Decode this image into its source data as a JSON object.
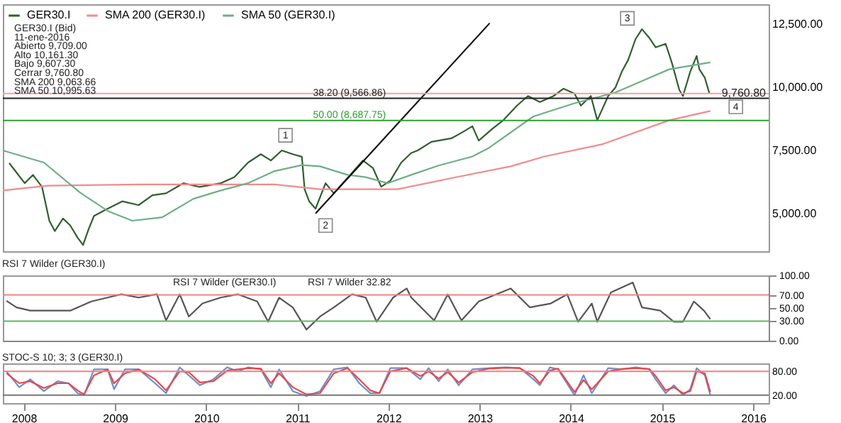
{
  "chart_data": [
    {
      "type": "line",
      "legend": "top left",
      "grid": false,
      "tick_labels": "y",
      "xlim": [
        2008.27,
        2016.67
      ],
      "ylim": [
        3500,
        13300
      ],
      "yticks": [
        {
          "value": 5000,
          "label": "5,000.00"
        },
        {
          "value": 7500,
          "label": "7,500.00"
        },
        {
          "value": 10000,
          "label": "10,000.00"
        },
        {
          "value": 12500,
          "label": "12,500.00"
        }
      ],
      "series": [
        {
          "name": "GER30.I",
          "color": "#2f5f2f",
          "x": [
            2008.34,
            2008.51,
            2008.6,
            2008.7,
            2008.78,
            2008.84,
            2008.93,
            2009.01,
            2009.09,
            2009.15,
            2009.21,
            2009.27,
            2009.42,
            2009.58,
            2009.76,
            2009.91,
            2010.06,
            2010.25,
            2010.43,
            2010.66,
            2010.81,
            2010.96,
            2011.1,
            2011.21,
            2011.33,
            2011.45,
            2011.55,
            2011.58,
            2011.63,
            2011.7,
            2011.81,
            2011.9,
            2012.08,
            2012.22,
            2012.33,
            2012.42,
            2012.52,
            2012.64,
            2012.75,
            2012.82,
            2012.97,
            2013.19,
            2013.31,
            2013.42,
            2013.49,
            2013.64,
            2013.76,
            2013.91,
            2014.03,
            2014.16,
            2014.31,
            2014.42,
            2014.54,
            2014.61,
            2014.72,
            2014.79,
            2014.91,
            2014.99,
            2015.06,
            2015.13,
            2015.21,
            2015.28,
            2015.36,
            2015.43,
            2015.54,
            2015.61,
            2015.69,
            2015.73,
            2015.81,
            2015.88,
            2015.91,
            2015.97,
            2016.02
          ],
          "values": [
            7000,
            6200,
            6530,
            6050,
            4710,
            4300,
            4800,
            4520,
            4040,
            3750,
            4370,
            4900,
            5190,
            5480,
            5330,
            5720,
            5800,
            6200,
            6050,
            6200,
            6440,
            7020,
            7350,
            7100,
            7500,
            7350,
            7250,
            5960,
            5480,
            5190,
            6200,
            5800,
            6530,
            7100,
            6800,
            6060,
            6300,
            7020,
            7400,
            7500,
            7840,
            7980,
            8220,
            8460,
            7890,
            8360,
            8700,
            9280,
            9660,
            9420,
            9660,
            9950,
            9760,
            9280,
            9660,
            8700,
            9660,
            10000,
            10630,
            11100,
            11920,
            12310,
            11970,
            11590,
            11730,
            10960,
            9900,
            9660,
            10630,
            11250,
            10720,
            10380,
            9760.8
          ]
        },
        {
          "name": "SMA 200 (GER30.I)",
          "color": "#f28b8b",
          "x": [
            2008.27,
            2008.76,
            2009.76,
            2011.25,
            2011.75,
            2012.6,
            2013.19,
            2013.84,
            2014.21,
            2014.84,
            2015.58,
            2016.03
          ],
          "values": [
            5910,
            6100,
            6150,
            6150,
            5960,
            5960,
            6400,
            6870,
            7260,
            7740,
            8700,
            9064
          ]
        },
        {
          "name": "SMA 50 (GER30.I)",
          "color": "#6fae86",
          "x": [
            2008.27,
            2008.72,
            2009.12,
            2009.42,
            2009.69,
            2010.02,
            2010.36,
            2010.66,
            2010.96,
            2011.25,
            2011.55,
            2011.75,
            2012.05,
            2012.25,
            2012.49,
            2012.75,
            2013.05,
            2013.42,
            2013.6,
            2014.09,
            2014.54,
            2014.99,
            2015.36,
            2015.58,
            2016.03
          ],
          "values": [
            7500,
            7020,
            5820,
            5100,
            4710,
            4850,
            5580,
            5910,
            6200,
            6680,
            6920,
            6870,
            6530,
            6440,
            6200,
            6530,
            6900,
            7260,
            7600,
            8850,
            9370,
            9800,
            10380,
            10720,
            10996
          ]
        },
        {
          "color": "#111111",
          "x": [
            2011.7,
            2013.61
          ],
          "values": [
            5000,
            12550
          ]
        }
      ],
      "ref_lines": [
        {
          "axis": "y",
          "value": 9760.8,
          "label": "9,760.80",
          "color": "#f4a0a0"
        },
        {
          "axis": "y",
          "value": 9566.86,
          "label": "38.20 (9,566.86)",
          "color": "#222222"
        },
        {
          "axis": "y",
          "value": 8687.75,
          "label": "50.00 (8,687.75)",
          "color": "#2e9e2e"
        }
      ],
      "annotations": [
        "GER30.I (Bid)",
        "11-ene-2016",
        "Abierto 9,709.00",
        "Alto 10,161.30",
        "Bajo 9,607.30",
        "Cerrar 9,760.80",
        "SMA 200 9,063.66",
        "SMA 50 10,995.63",
        {
          "text": "1",
          "x": 2011.37,
          "y": 8100
        },
        {
          "text": "2",
          "x": 2011.81,
          "y": 4520
        },
        {
          "text": "3",
          "x": 2015.12,
          "y": 12740
        },
        {
          "text": "4",
          "x": 2016.31,
          "y": 9230
        }
      ]
    },
    {
      "type": "line",
      "title": "RSI 7 Wilder (GER30.I)",
      "grid": false,
      "tick_labels": "y",
      "xlim": [
        2008.27,
        2016.67
      ],
      "ylim": [
        0,
        100
      ],
      "yticks": [
        {
          "value": 0,
          "label": "0.00"
        },
        {
          "value": 30,
          "label": "30.00"
        },
        {
          "value": 50,
          "label": "50.00"
        },
        {
          "value": 70,
          "label": "70.00"
        },
        {
          "value": 100,
          "label": "100.00"
        }
      ],
      "x": [
        2008.31,
        2008.42,
        2008.57,
        2009.01,
        2009.24,
        2009.42,
        2009.57,
        2009.76,
        2009.96,
        2010.06,
        2010.21,
        2010.31,
        2010.46,
        2010.66,
        2010.85,
        2011.06,
        2011.18,
        2011.3,
        2011.45,
        2011.6,
        2011.75,
        2011.9,
        2012.1,
        2012.25,
        2012.37,
        2012.55,
        2012.7,
        2012.75,
        2013.0,
        2013.15,
        2013.3,
        2013.49,
        2013.84,
        2014.05,
        2014.28,
        2014.46,
        2014.58,
        2014.73,
        2014.79,
        2014.94,
        2015.18,
        2015.28,
        2015.48,
        2015.63,
        2015.73,
        2015.85,
        2015.96,
        2016.03
      ],
      "series": [
        {
          "color": "#555555",
          "values": [
            61,
            51,
            46,
            46,
            60,
            66,
            71,
            66,
            71,
            31,
            71,
            37,
            57,
            66,
            71,
            60,
            29,
            66,
            51,
            17,
            37,
            51,
            71,
            66,
            29,
            66,
            80,
            66,
            31,
            71,
            31,
            60,
            80,
            51,
            57,
            71,
            29,
            57,
            29,
            74,
            89,
            51,
            46,
            29,
            29,
            60,
            46,
            33
          ]
        }
      ],
      "ref_lines": [
        {
          "axis": "y",
          "value": 70,
          "color": "#f08080"
        },
        {
          "axis": "y",
          "value": 30,
          "color": "#5cb85c"
        }
      ],
      "annotations": [
        "RSI 7 Wilder (GER30.I)",
        "RSI 7 Wilder 32.82"
      ]
    },
    {
      "type": "line",
      "title": "STOC-S 10; 3; 3 (GER30.I)",
      "grid": false,
      "xlim": [
        2008.27,
        2016.67
      ],
      "ylim": [
        0,
        100
      ],
      "xticks": [
        {
          "value": 2008.5,
          "label": "2008"
        },
        {
          "value": 2009.5,
          "label": "2009"
        },
        {
          "value": 2010.5,
          "label": "2010"
        },
        {
          "value": 2011.5,
          "label": "2011"
        },
        {
          "value": 2012.5,
          "label": "2012"
        },
        {
          "value": 2013.5,
          "label": "2013"
        },
        {
          "value": 2014.5,
          "label": "2014"
        },
        {
          "value": 2015.5,
          "label": "2015"
        },
        {
          "value": 2016.5,
          "label": "2016"
        }
      ],
      "yticks": [
        {
          "value": 20,
          "label": "20.00"
        },
        {
          "value": 80,
          "label": "80.00"
        }
      ],
      "x": [
        2008.31,
        2008.45,
        2008.57,
        2008.72,
        2008.87,
        2008.99,
        2009.09,
        2009.16,
        2009.27,
        2009.42,
        2009.49,
        2009.61,
        2009.76,
        2009.94,
        2010.06,
        2010.21,
        2010.31,
        2010.43,
        2010.58,
        2010.73,
        2010.85,
        2010.96,
        2011.1,
        2011.21,
        2011.3,
        2011.45,
        2011.6,
        2011.75,
        2011.9,
        2012.05,
        2012.18,
        2012.3,
        2012.4,
        2012.52,
        2012.7,
        2012.85,
        2012.94,
        2013.05,
        2013.15,
        2013.27,
        2013.42,
        2013.61,
        2013.79,
        2013.94,
        2014.09,
        2014.16,
        2014.27,
        2014.36,
        2014.54,
        2014.64,
        2014.73,
        2014.91,
        2015.06,
        2015.21,
        2015.36,
        2015.43,
        2015.54,
        2015.63,
        2015.73,
        2015.81,
        2015.88,
        2015.97,
        2016.03
      ],
      "series": [
        {
          "color": "#6f8fc8",
          "values": [
            80,
            40,
            60,
            30,
            55,
            50,
            25,
            20,
            85,
            85,
            35,
            85,
            85,
            50,
            25,
            90,
            70,
            45,
            60,
            90,
            80,
            90,
            85,
            40,
            85,
            30,
            18,
            30,
            85,
            90,
            50,
            25,
            25,
            88,
            88,
            60,
            88,
            55,
            85,
            45,
            85,
            88,
            90,
            88,
            60,
            45,
            90,
            85,
            20,
            70,
            25,
            88,
            85,
            90,
            85,
            60,
            25,
            45,
            20,
            35,
            88,
            70,
            20
          ]
        },
        {
          "color": "#e8474a",
          "values": [
            75,
            50,
            55,
            38,
            50,
            50,
            32,
            22,
            70,
            85,
            50,
            75,
            85,
            60,
            32,
            80,
            78,
            52,
            55,
            82,
            85,
            88,
            87,
            50,
            75,
            40,
            22,
            25,
            75,
            88,
            60,
            32,
            25,
            80,
            88,
            68,
            80,
            62,
            78,
            52,
            78,
            87,
            89,
            88,
            68,
            50,
            82,
            87,
            28,
            58,
            35,
            80,
            86,
            88,
            86,
            68,
            32,
            40,
            25,
            30,
            80,
            75,
            28
          ]
        }
      ],
      "ref_lines": [
        {
          "axis": "y",
          "value": 80,
          "color": "#f08080"
        },
        {
          "axis": "y",
          "value": 20,
          "color": "#777777"
        }
      ]
    }
  ]
}
